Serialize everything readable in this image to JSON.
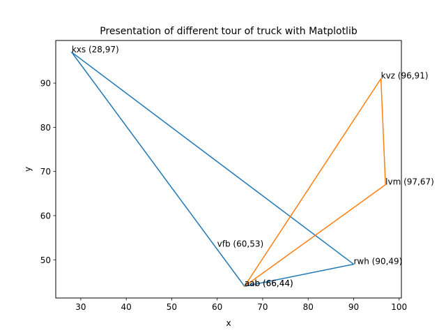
{
  "chart_data": {
    "type": "line",
    "title": "Presentation of different tour of truck with Matplotlib",
    "xlabel": "x",
    "ylabel": "y",
    "xlim": [
      24.5,
      100.5
    ],
    "ylim": [
      41.35,
      99.65
    ],
    "xticks": [
      30,
      40,
      50,
      60,
      70,
      80,
      90,
      100
    ],
    "yticks": [
      50,
      60,
      70,
      80,
      90
    ],
    "grid": false,
    "series": [
      {
        "color": "#1f77b4",
        "x": [
          28,
          66,
          90,
          28
        ],
        "y": [
          97,
          44,
          49,
          97
        ]
      },
      {
        "color": "#ff7f0e",
        "x": [
          66,
          96,
          97,
          66
        ],
        "y": [
          44,
          91,
          67,
          44
        ]
      }
    ],
    "annotations": [
      {
        "text": "kxs (28,97)",
        "x": 28,
        "y": 97
      },
      {
        "text": "kvz (96,91)",
        "x": 96,
        "y": 91
      },
      {
        "text": "lvm (97,67)",
        "x": 97,
        "y": 67
      },
      {
        "text": "vfb (60,53)",
        "x": 60,
        "y": 53
      },
      {
        "text": "rwh (90,49)",
        "x": 90,
        "y": 49
      },
      {
        "text": "aab (66,44)",
        "x": 66,
        "y": 44
      },
      {
        "text": "aab (66,44)",
        "x": 66,
        "y": 44
      }
    ]
  }
}
